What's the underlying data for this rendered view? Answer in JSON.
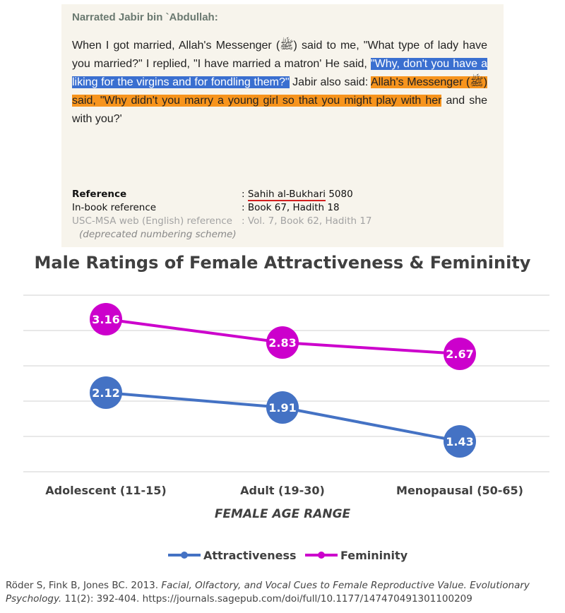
{
  "hadith": {
    "narrator": "Narrated Jabir bin `Abdullah:",
    "segments": [
      {
        "text": "When I got married, Allah's Messenger (ﷺ) said to me, \"What type of lady have you married?\" I replied, \"I have married a matron' He said, ",
        "style": "plain"
      },
      {
        "text": "\"Why, don't you have a liking for the virgins and for fondling them?\"",
        "style": "blue"
      },
      {
        "text": " Jabir also said: ",
        "style": "plain"
      },
      {
        "text": "Allah's Messenger (ﷺ) said, \"Why didn't you marry a young girl so that you might play with her",
        "style": "orange"
      },
      {
        "text": " and she with you?'",
        "style": "plain"
      }
    ],
    "reference": {
      "label": "Reference",
      "separator": ":",
      "source": "Sahih al-Bukhari",
      "number": "5080"
    },
    "in_book": {
      "label": "In-book reference",
      "separator": ":",
      "value": "Book 67, Hadith 18"
    },
    "usc_msa": {
      "label": "USC-MSA web (English) reference",
      "separator": ":",
      "value": "Vol. 7, Book 62, Hadith 17",
      "note": "(deprecated numbering scheme)"
    }
  },
  "chart_data": {
    "type": "line",
    "title": "Male Ratings of Female Attractiveness & Femininity",
    "categories": [
      "Adolescent (11-15)",
      "Adult (19-30)",
      "Menopausal (50-65)"
    ],
    "xlabel": "FEMALE AGE RANGE",
    "ylabel": "",
    "series": [
      {
        "name": "Attractiveness",
        "values": [
          2.12,
          1.91,
          1.43
        ],
        "color": "#4472c4"
      },
      {
        "name": "Femininity",
        "values": [
          3.16,
          2.83,
          2.67
        ],
        "color": "#cc00cc"
      }
    ],
    "data_labels": true,
    "grid": true,
    "y_tick_labels_shown": false,
    "legend": "bottom"
  },
  "citation": {
    "authors": "Röder S, Fink B, Jones BC. 2013.",
    "title": "Facial, Olfactory, and Vocal Cues to Female Reproductive Value. Evolutionary Psychology.",
    "details": "11(2): 392-404. https://journals.sagepub.com/doi/full/10.1177/147470491301100209"
  }
}
